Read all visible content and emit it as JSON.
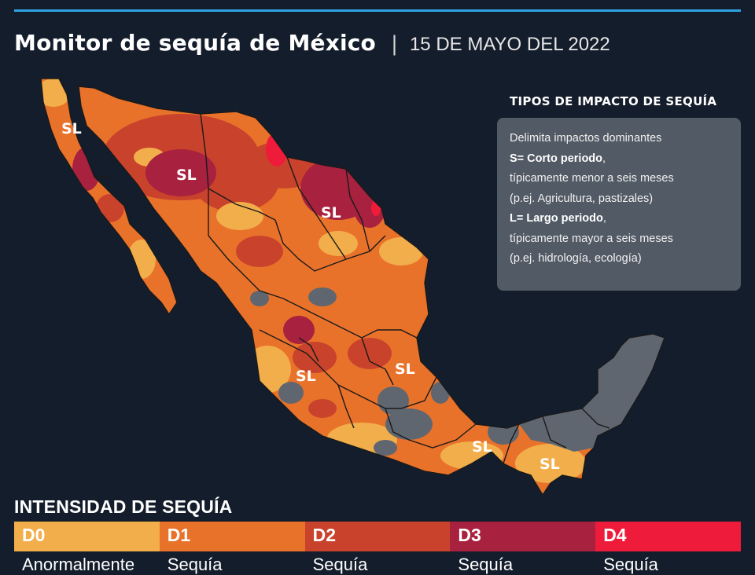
{
  "header": {
    "title": "Monitor de sequía de México",
    "separator": "|",
    "date": "15 DE MAYO DEL 2022"
  },
  "legend": {
    "heading": "TIPOS DE IMPACTO DE SEQUÍA",
    "intro": "Delimita impactos dominantes",
    "s_label": "S= Corto periodo",
    "s_desc": "típicamente menor a seis meses",
    "s_example": "(p.ej. Agricultura, pastizales)",
    "l_label": "L= Largo periodo",
    "l_desc": "típicamente mayor a seis meses",
    "l_example": "(p.ej. hidrología, ecología)"
  },
  "map": {
    "impact_labels": [
      "SL",
      "SL",
      "SL",
      "SL",
      "SL",
      "SL",
      "SL"
    ],
    "colors": {
      "none": "#5f6670",
      "d0": "#f2ae4a",
      "d1": "#e9722b",
      "d2": "#c9432c",
      "d3": "#a8213f",
      "d4": "#ee1c3a",
      "borders": "#1a1a1a"
    }
  },
  "intensity": {
    "heading": "INTENSIDAD DE SEQUÍA",
    "levels": [
      {
        "code": "D0",
        "color": "#f2ae4a",
        "desc": "Anormalmente"
      },
      {
        "code": "D1",
        "color": "#e9722b",
        "desc": "Sequía"
      },
      {
        "code": "D2",
        "color": "#c9432c",
        "desc": "Sequía"
      },
      {
        "code": "D3",
        "color": "#a8213f",
        "desc": "Sequía"
      },
      {
        "code": "D4",
        "color": "#ee1c3a",
        "desc": "Sequía"
      }
    ]
  }
}
